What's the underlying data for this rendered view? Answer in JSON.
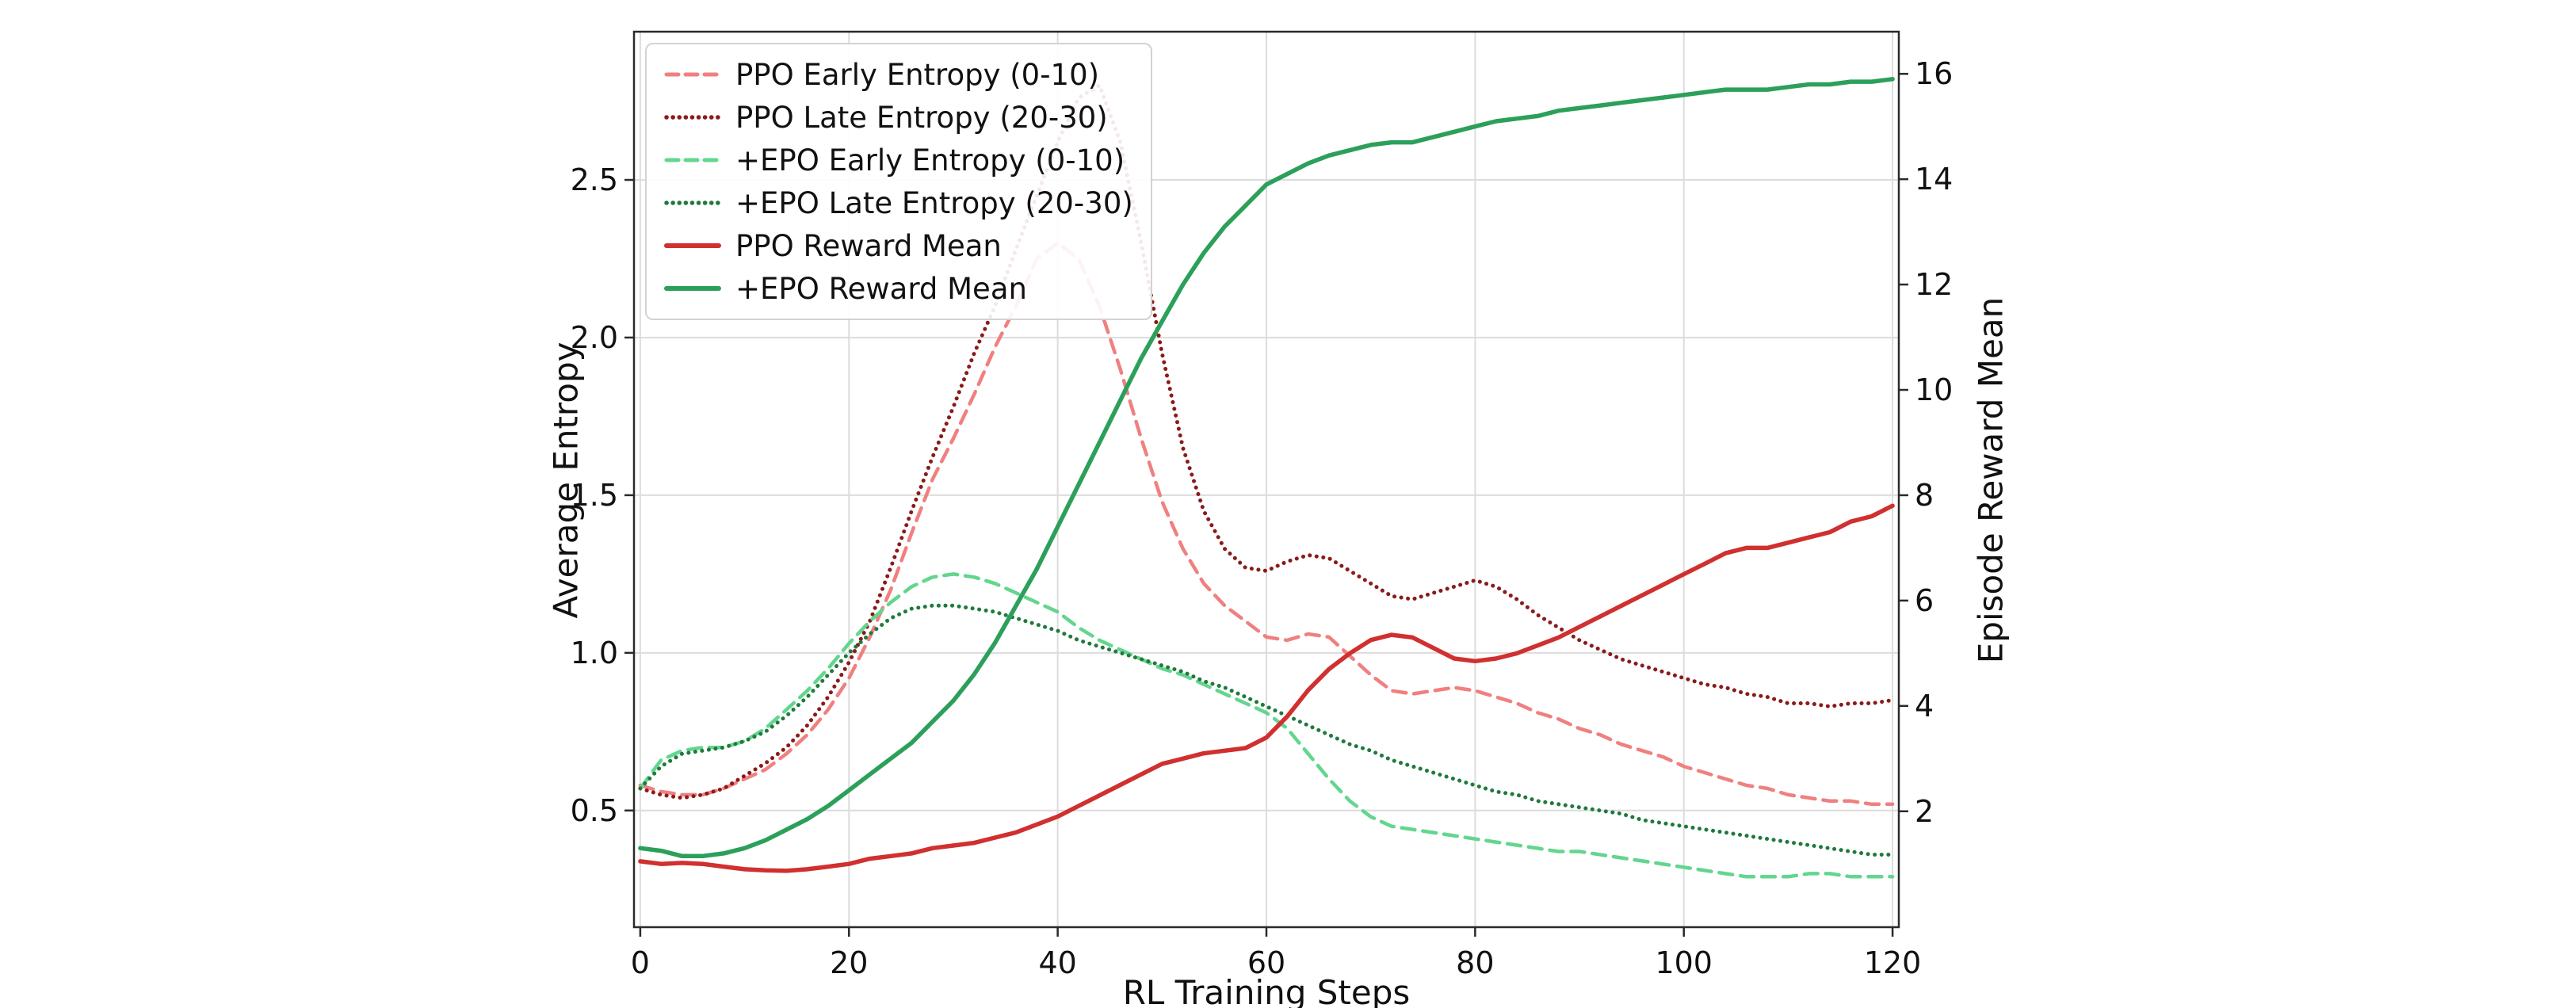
{
  "chart_data": {
    "type": "line",
    "title": "",
    "xlabel": "RL Training Steps",
    "ylabel_left": "Average Entropy",
    "ylabel_right": "Episode Reward Mean",
    "xlim": [
      -0.6,
      120.6
    ],
    "ylim_left": [
      0.13,
      2.97
    ],
    "ylim_right": [
      -0.2,
      16.8
    ],
    "grid": true,
    "legend_position": "upper-left",
    "x_ticks": [
      0,
      20,
      40,
      60,
      80,
      100,
      120
    ],
    "x_tick_labels": [
      "0",
      "20",
      "40",
      "60",
      "80",
      "100",
      "120"
    ],
    "left_ticks": [
      0.5,
      1.0,
      1.5,
      2.0,
      2.5
    ],
    "left_tick_labels": [
      "0.5",
      "1.0",
      "1.5",
      "2.0",
      "2.5"
    ],
    "right_ticks": [
      2,
      4,
      6,
      8,
      10,
      12,
      14,
      16
    ],
    "right_tick_labels": [
      "2",
      "4",
      "6",
      "8",
      "10",
      "12",
      "14",
      "16"
    ],
    "x": [
      0,
      2,
      4,
      6,
      8,
      10,
      12,
      14,
      16,
      18,
      20,
      22,
      24,
      26,
      28,
      30,
      32,
      34,
      36,
      38,
      40,
      42,
      44,
      46,
      48,
      50,
      52,
      54,
      56,
      58,
      60,
      62,
      64,
      66,
      68,
      70,
      72,
      74,
      76,
      78,
      80,
      82,
      84,
      86,
      88,
      90,
      92,
      94,
      96,
      98,
      100,
      102,
      104,
      106,
      108,
      110,
      112,
      114,
      116,
      118,
      120
    ],
    "series": [
      {
        "id": "ppo-early-entropy",
        "name": "PPO Early Entropy (0-10)",
        "axis": "left",
        "line_style": "dashed",
        "color": "#F08080",
        "y": [
          0.58,
          0.56,
          0.55,
          0.55,
          0.57,
          0.6,
          0.63,
          0.68,
          0.74,
          0.82,
          0.92,
          1.05,
          1.2,
          1.38,
          1.55,
          1.68,
          1.82,
          1.97,
          2.1,
          2.25,
          2.3,
          2.25,
          2.1,
          1.9,
          1.68,
          1.48,
          1.33,
          1.22,
          1.15,
          1.1,
          1.05,
          1.04,
          1.06,
          1.05,
          0.99,
          0.93,
          0.88,
          0.87,
          0.88,
          0.89,
          0.88,
          0.86,
          0.84,
          0.81,
          0.79,
          0.76,
          0.74,
          0.71,
          0.69,
          0.67,
          0.64,
          0.62,
          0.6,
          0.58,
          0.57,
          0.55,
          0.54,
          0.53,
          0.53,
          0.52,
          0.52
        ]
      },
      {
        "id": "ppo-late-entropy",
        "name": "PPO Late Entropy (20-30)",
        "axis": "left",
        "line_style": "dotted",
        "color": "#8B1A1A",
        "y": [
          0.57,
          0.55,
          0.54,
          0.55,
          0.57,
          0.61,
          0.65,
          0.7,
          0.77,
          0.86,
          0.97,
          1.1,
          1.27,
          1.45,
          1.62,
          1.78,
          1.95,
          2.1,
          2.28,
          2.45,
          2.62,
          2.76,
          2.8,
          2.62,
          2.3,
          1.95,
          1.65,
          1.45,
          1.33,
          1.27,
          1.26,
          1.29,
          1.31,
          1.3,
          1.26,
          1.22,
          1.18,
          1.17,
          1.19,
          1.21,
          1.23,
          1.21,
          1.17,
          1.12,
          1.08,
          1.04,
          1.01,
          0.98,
          0.96,
          0.94,
          0.92,
          0.9,
          0.89,
          0.87,
          0.86,
          0.84,
          0.84,
          0.83,
          0.84,
          0.84,
          0.85
        ]
      },
      {
        "id": "epo-early-entropy",
        "name": "+EPO Early Entropy (0-10)",
        "axis": "left",
        "line_style": "dashed",
        "color": "#63D68E",
        "y": [
          0.57,
          0.66,
          0.69,
          0.7,
          0.7,
          0.72,
          0.76,
          0.82,
          0.88,
          0.95,
          1.03,
          1.1,
          1.16,
          1.21,
          1.24,
          1.25,
          1.24,
          1.22,
          1.19,
          1.16,
          1.13,
          1.08,
          1.04,
          1.01,
          0.98,
          0.95,
          0.93,
          0.9,
          0.87,
          0.84,
          0.81,
          0.76,
          0.68,
          0.6,
          0.53,
          0.48,
          0.45,
          0.44,
          0.43,
          0.42,
          0.41,
          0.4,
          0.39,
          0.38,
          0.37,
          0.37,
          0.36,
          0.35,
          0.34,
          0.33,
          0.32,
          0.31,
          0.3,
          0.29,
          0.29,
          0.29,
          0.3,
          0.3,
          0.29,
          0.29,
          0.29
        ]
      },
      {
        "id": "epo-late-entropy",
        "name": "+EPO Late Entropy (20-30)",
        "axis": "left",
        "line_style": "dotted",
        "color": "#1F7A3D",
        "y": [
          0.57,
          0.64,
          0.68,
          0.69,
          0.7,
          0.72,
          0.75,
          0.8,
          0.86,
          0.93,
          1.0,
          1.06,
          1.11,
          1.14,
          1.15,
          1.15,
          1.14,
          1.13,
          1.11,
          1.09,
          1.07,
          1.04,
          1.02,
          1.0,
          0.98,
          0.96,
          0.94,
          0.91,
          0.89,
          0.86,
          0.83,
          0.8,
          0.77,
          0.74,
          0.71,
          0.69,
          0.66,
          0.64,
          0.62,
          0.6,
          0.58,
          0.56,
          0.55,
          0.53,
          0.52,
          0.51,
          0.5,
          0.49,
          0.47,
          0.46,
          0.45,
          0.44,
          0.43,
          0.42,
          0.41,
          0.4,
          0.39,
          0.38,
          0.37,
          0.36,
          0.36
        ]
      },
      {
        "id": "ppo-reward-mean",
        "name": "PPO Reward Mean",
        "axis": "right",
        "line_style": "solid",
        "color": "#D03030",
        "y": [
          1.05,
          1.0,
          1.02,
          1.0,
          0.95,
          0.9,
          0.88,
          0.87,
          0.9,
          0.95,
          1.0,
          1.1,
          1.15,
          1.2,
          1.3,
          1.35,
          1.4,
          1.5,
          1.6,
          1.75,
          1.9,
          2.1,
          2.3,
          2.5,
          2.7,
          2.9,
          3.0,
          3.1,
          3.15,
          3.2,
          3.4,
          3.8,
          4.3,
          4.7,
          5.0,
          5.25,
          5.35,
          5.3,
          5.1,
          4.9,
          4.85,
          4.9,
          5.0,
          5.15,
          5.3,
          5.5,
          5.7,
          5.9,
          6.1,
          6.3,
          6.5,
          6.7,
          6.9,
          7.0,
          7.0,
          7.1,
          7.2,
          7.3,
          7.5,
          7.6,
          7.8
        ]
      },
      {
        "id": "epo-reward-mean",
        "name": "+EPO Reward Mean",
        "axis": "right",
        "line_style": "solid",
        "color": "#2CA05A",
        "y": [
          1.3,
          1.25,
          1.15,
          1.15,
          1.2,
          1.3,
          1.45,
          1.65,
          1.85,
          2.1,
          2.4,
          2.7,
          3.0,
          3.3,
          3.7,
          4.1,
          4.6,
          5.2,
          5.9,
          6.6,
          7.4,
          8.2,
          9.0,
          9.8,
          10.6,
          11.3,
          12.0,
          12.6,
          13.1,
          13.5,
          13.9,
          14.1,
          14.3,
          14.45,
          14.55,
          14.65,
          14.7,
          14.7,
          14.8,
          14.9,
          15.0,
          15.1,
          15.15,
          15.2,
          15.3,
          15.35,
          15.4,
          15.45,
          15.5,
          15.55,
          15.6,
          15.65,
          15.7,
          15.7,
          15.7,
          15.75,
          15.8,
          15.8,
          15.85,
          15.85,
          15.9
        ]
      }
    ]
  }
}
